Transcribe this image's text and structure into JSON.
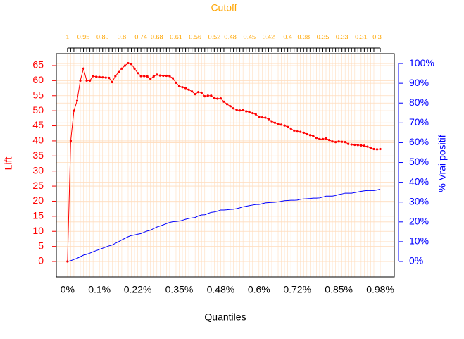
{
  "chart_data": {
    "type": "line",
    "x2label": "Cutoff",
    "xlabel": "Quantiles",
    "ylabel": "Lift",
    "y2label": "% Vrai positif",
    "x": [
      0,
      0.01,
      0.02,
      0.03,
      0.04,
      0.05,
      0.06,
      0.07,
      0.08,
      0.09,
      0.1,
      0.11,
      0.12,
      0.13,
      0.14,
      0.15,
      0.16,
      0.17,
      0.18,
      0.19,
      0.2,
      0.21,
      0.22,
      0.23,
      0.24,
      0.25,
      0.26,
      0.27,
      0.28,
      0.29,
      0.3,
      0.31,
      0.32,
      0.33,
      0.34,
      0.35,
      0.36,
      0.37,
      0.38,
      0.39,
      0.4,
      0.41,
      0.42,
      0.43,
      0.44,
      0.45,
      0.46,
      0.47,
      0.48,
      0.49,
      0.5,
      0.51,
      0.52,
      0.53,
      0.54,
      0.55,
      0.56,
      0.57,
      0.58,
      0.59,
      0.6,
      0.61,
      0.62,
      0.63,
      0.64,
      0.65,
      0.66,
      0.67,
      0.68,
      0.69,
      0.7,
      0.71,
      0.72,
      0.73,
      0.74,
      0.75,
      0.76,
      0.77,
      0.78,
      0.79,
      0.8,
      0.81,
      0.82,
      0.83,
      0.84,
      0.85,
      0.86,
      0.87,
      0.88,
      0.89,
      0.9,
      0.91,
      0.92,
      0.93,
      0.94,
      0.95,
      0.96,
      0.97,
      0.98
    ],
    "x2_labels": [
      "1",
      null,
      null,
      null,
      null,
      "0.95",
      null,
      null,
      null,
      null,
      null,
      "0.89",
      null,
      null,
      null,
      null,
      null,
      "0.8",
      null,
      null,
      null,
      null,
      null,
      "0.74",
      null,
      null,
      null,
      null,
      "0.68",
      null,
      null,
      null,
      null,
      null,
      "0.61",
      null,
      null,
      null,
      null,
      null,
      "0.56",
      null,
      null,
      null,
      null,
      null,
      "0.52",
      null,
      null,
      null,
      null,
      "0.48",
      null,
      null,
      null,
      null,
      null,
      "0.45",
      null,
      null,
      null,
      null,
      null,
      "0.42",
      null,
      null,
      null,
      null,
      null,
      "0.4",
      null,
      null,
      null,
      null,
      "0.38",
      null,
      null,
      null,
      null,
      null,
      "0.35",
      null,
      null,
      null,
      null,
      null,
      "0.33",
      null,
      null,
      null,
      null,
      null,
      "0.31",
      null,
      null,
      null,
      null,
      "0.3",
      null
    ],
    "series": [
      {
        "color": "#ff0000",
        "axis": "y",
        "markers": true,
        "values": [
          0,
          40,
          50,
          53.3,
          60,
          64,
          60,
          60,
          61.5,
          61.3,
          61.2,
          61.1,
          61,
          60.9,
          59.5,
          61.5,
          62.8,
          64,
          65,
          65.8,
          65.5,
          64,
          62.5,
          61.5,
          61.5,
          61.4,
          60.6,
          61.4,
          62,
          61.7,
          61.6,
          61.6,
          61.5,
          60.8,
          59.3,
          58.2,
          57.8,
          57.5,
          57,
          56.4,
          55.5,
          56.2,
          56,
          54.8,
          55,
          55,
          54.3,
          54,
          54.1,
          53,
          52.2,
          51.5,
          50.8,
          50.3,
          50.1,
          50.2,
          49.8,
          49.5,
          49.2,
          48.8,
          48,
          47.8,
          47.7,
          47.2,
          46.5,
          46,
          45.6,
          45.4,
          45.1,
          44.6,
          44.1,
          43.4,
          43.1,
          43,
          42.7,
          42.2,
          41.9,
          41.6,
          41,
          40.6,
          40.6,
          40.8,
          40.3,
          39.8,
          39.6,
          39.8,
          39.7,
          39.6,
          39,
          38.8,
          38.7,
          38.6,
          38.5,
          38.4,
          38.1,
          37.6,
          37.3,
          37.2,
          37.3
        ]
      },
      {
        "color": "#0000ff",
        "axis": "y2",
        "markers": false,
        "values": [
          0,
          0.4,
          1.0,
          1.6,
          2.4,
          3.2,
          3.6,
          4.2,
          4.9,
          5.5,
          6.1,
          6.7,
          7.3,
          7.9,
          8.3,
          9.2,
          10.0,
          10.9,
          11.7,
          12.5,
          13.1,
          13.4,
          13.8,
          14.1,
          14.8,
          15.4,
          15.8,
          16.6,
          17.4,
          17.9,
          18.5,
          19.1,
          19.7,
          20.1,
          20.2,
          20.4,
          20.8,
          21.3,
          21.7,
          22.0,
          22.2,
          23.0,
          23.5,
          23.6,
          24.2,
          24.8,
          25.0,
          25.4,
          26.0,
          26.0,
          26.1,
          26.3,
          26.4,
          26.7,
          27.1,
          27.6,
          27.9,
          28.2,
          28.5,
          28.8,
          28.8,
          29.2,
          29.6,
          29.7,
          29.8,
          29.9,
          30.1,
          30.4,
          30.7,
          30.8,
          30.9,
          30.9,
          31.0,
          31.4,
          31.6,
          31.7,
          31.8,
          32.0,
          32.0,
          32.1,
          32.5,
          33.0,
          33.0,
          33.0,
          33.3,
          33.8,
          34.1,
          34.5,
          34.5,
          34.5,
          34.8,
          35.1,
          35.4,
          35.7,
          35.8,
          35.8,
          35.8,
          36.1,
          36.6
        ]
      }
    ],
    "xlim": [
      -0.035,
      1.024
    ],
    "xticks": [
      {
        "value": 0,
        "label": "0%"
      },
      {
        "value": 0.1,
        "label": "0.1%"
      },
      {
        "value": 0.22,
        "label": "0.22%"
      },
      {
        "value": 0.35,
        "label": "0.35%"
      },
      {
        "value": 0.48,
        "label": "0.48%"
      },
      {
        "value": 0.6,
        "label": "0.6%"
      },
      {
        "value": 0.72,
        "label": "0.72%"
      },
      {
        "value": 0.85,
        "label": "0.85%"
      },
      {
        "value": 0.98,
        "label": "0.98%"
      }
    ],
    "ylim": [
      -5.14,
      68.97
    ],
    "yticks": [
      0,
      5,
      10,
      15,
      20,
      25,
      30,
      35,
      40,
      45,
      50,
      55,
      60,
      65
    ],
    "y2lim": [
      -7.83,
      105.0
    ],
    "y2ticks": [
      {
        "value": 0,
        "label": "0%"
      },
      {
        "value": 10,
        "label": "10%"
      },
      {
        "value": 20,
        "label": "20%"
      },
      {
        "value": 30,
        "label": "30%"
      },
      {
        "value": 40,
        "label": "40%"
      },
      {
        "value": 50,
        "label": "50%"
      },
      {
        "value": 60,
        "label": "60%"
      },
      {
        "value": 70,
        "label": "70%"
      },
      {
        "value": 80,
        "label": "80%"
      },
      {
        "value": 90,
        "label": "90%"
      },
      {
        "value": 100,
        "label": "100%"
      }
    ],
    "grid": true,
    "ycolor": "#ff0000",
    "y2color": "#0000ff",
    "x2color": "#ffa500",
    "gridcolor": "#ffdcbc"
  }
}
